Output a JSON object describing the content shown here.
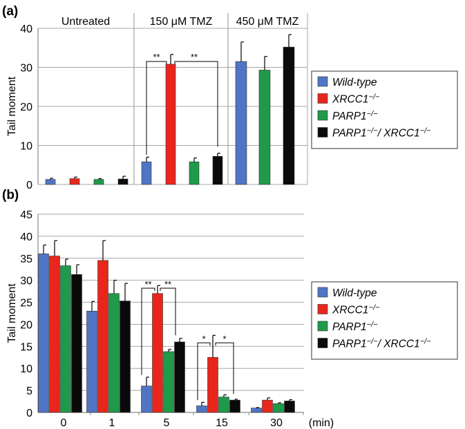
{
  "colors": {
    "wildtype": "#4f75c4",
    "xrcc1": "#e8261c",
    "parp1": "#1f9a4a",
    "double": "#0a0a0a"
  },
  "legend": [
    {
      "key": "wildtype",
      "base": "Wild-type",
      "sup": "",
      "italic": true
    },
    {
      "key": "xrcc1",
      "base": "XRCC1",
      "sup": "−/−",
      "italic": true
    },
    {
      "key": "parp1",
      "base": "PARP1",
      "sup": "−/−",
      "italic": true
    },
    {
      "key": "double",
      "base": "PARP1",
      "sup": "−/−",
      "mid": "/ XRCC1",
      "sup2": "−/−",
      "italic": true
    }
  ],
  "chart_data": [
    {
      "panel_label": "(a)",
      "type": "bar",
      "ylabel": "Tail moment",
      "ylim": [
        0,
        40
      ],
      "yticks": [
        0,
        10,
        20,
        30,
        40
      ],
      "grid": true,
      "legend_position": "right",
      "groups": [
        "Untreated",
        "150 μM TMZ",
        "450 μM TMZ"
      ],
      "series": [
        {
          "key": "wildtype",
          "values": [
            1.3,
            5.8,
            31.5
          ],
          "errors": [
            0.3,
            1.2,
            5.0
          ]
        },
        {
          "key": "xrcc1",
          "values": [
            1.5,
            30.8,
            null
          ],
          "errors": [
            0.4,
            2.5,
            null
          ]
        },
        {
          "key": "parp1",
          "values": [
            1.3,
            5.8,
            29.3
          ],
          "errors": [
            0.2,
            1.0,
            3.5
          ]
        },
        {
          "key": "double",
          "values": [
            1.4,
            7.2,
            35.2
          ],
          "errors": [
            0.7,
            0.8,
            3.2
          ]
        }
      ],
      "significance": [
        {
          "group": 1,
          "from": 0,
          "to": 1,
          "label": "**"
        },
        {
          "group": 1,
          "from": 1,
          "to": 3,
          "label": "**"
        }
      ]
    },
    {
      "panel_label": "(b)",
      "type": "bar",
      "ylabel": "Tail moment",
      "xlabel_unit": "(min)",
      "ylim": [
        0,
        45
      ],
      "yticks": [
        0,
        5,
        10,
        15,
        20,
        25,
        30,
        35,
        40,
        45
      ],
      "grid": true,
      "legend_position": "right",
      "categories": [
        "0",
        "1",
        "5",
        "15",
        "30"
      ],
      "series": [
        {
          "key": "wildtype",
          "values": [
            36.0,
            23.0,
            6.0,
            1.5,
            1.0
          ],
          "errors": [
            2.0,
            2.2,
            2.0,
            0.8,
            0.1
          ]
        },
        {
          "key": "xrcc1",
          "values": [
            35.5,
            34.5,
            27.0,
            12.5,
            2.8
          ],
          "errors": [
            3.5,
            4.5,
            1.8,
            5.0,
            0.5
          ]
        },
        {
          "key": "parp1",
          "values": [
            33.3,
            27.0,
            13.8,
            3.5,
            2.0
          ],
          "errors": [
            1.5,
            3.0,
            0.5,
            0.5,
            0.2
          ]
        },
        {
          "key": "double",
          "values": [
            31.3,
            25.3,
            16.0,
            2.8,
            2.6
          ],
          "errors": [
            2.2,
            4.0,
            0.8,
            0.2,
            0.3
          ]
        }
      ],
      "significance": [
        {
          "group": 2,
          "from": 0,
          "to": 1,
          "label": "**"
        },
        {
          "group": 2,
          "from": 1,
          "to": 2,
          "label": "**"
        },
        {
          "group": 3,
          "from": 0,
          "to": 1,
          "label": "*"
        },
        {
          "group": 3,
          "from": 1,
          "to": 2,
          "label": "*"
        }
      ]
    }
  ]
}
